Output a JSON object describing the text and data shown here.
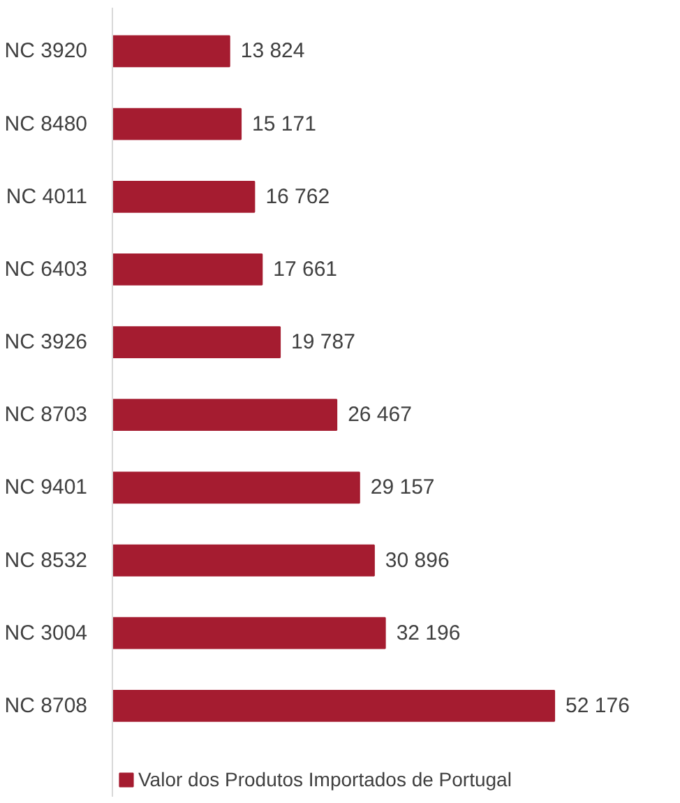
{
  "chart_data": {
    "type": "bar",
    "orientation": "horizontal",
    "categories": [
      "NC 3920",
      "NC 8480",
      "NC 4011",
      "NC 6403",
      "NC 3926",
      "NC 8703",
      "NC 9401",
      "NC 8532",
      "NC 3004",
      "NC 8708"
    ],
    "series": [
      {
        "name": "Valor dos Produtos Importados de Portugal",
        "color": "#a51c30",
        "values": [
          13824,
          15171,
          16762,
          17661,
          19787,
          26467,
          29157,
          30896,
          32196,
          52176
        ],
        "value_labels": [
          "13 824",
          "15 171",
          "16 762",
          "17 661",
          "19 787",
          "26 467",
          "29 157",
          "30 896",
          "32 196",
          "52 176"
        ]
      }
    ],
    "legend": "bottom left",
    "grid": false
  }
}
